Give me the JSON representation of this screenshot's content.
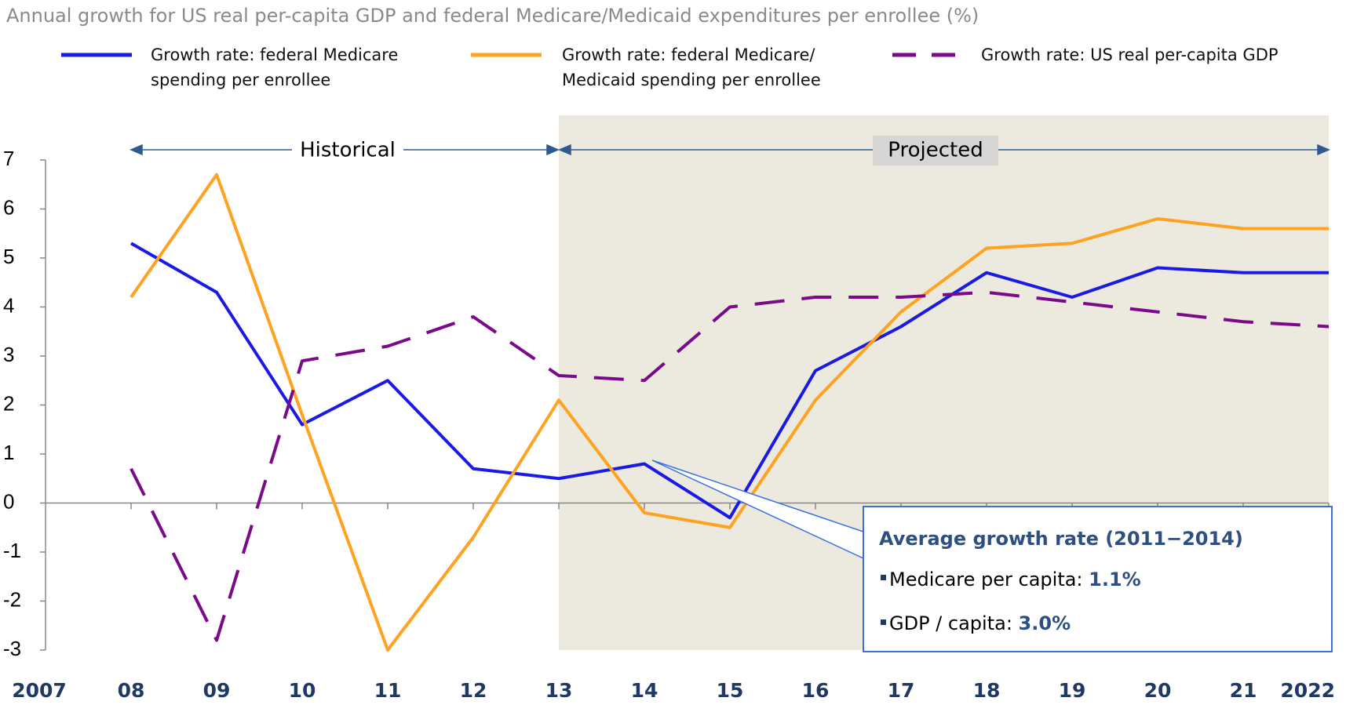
{
  "chart_data": {
    "type": "line",
    "title": "Annual growth for US real per-capita GDP and federal Medicare/Medicaid expenditures per enrollee (%)",
    "categories": [
      "2007",
      "08",
      "09",
      "10",
      "11",
      "12",
      "13",
      "14",
      "15",
      "16",
      "17",
      "18",
      "19",
      "20",
      "21",
      "2022"
    ],
    "series": [
      {
        "name": "Growth rate: federal Medicare spending per enrollee",
        "color": "#1a1ae6",
        "dashed": false,
        "values": [
          null,
          5.3,
          4.3,
          1.6,
          2.5,
          0.7,
          0.5,
          0.8,
          -0.3,
          2.7,
          3.6,
          4.7,
          4.2,
          4.8,
          4.7,
          4.7
        ]
      },
      {
        "name": "Growth rate: federal Medicare/ Medicaid spending per enrollee",
        "color": "#ffa21f",
        "dashed": false,
        "values": [
          null,
          4.2,
          6.7,
          1.8,
          -3.0,
          -0.7,
          2.1,
          -0.2,
          -0.5,
          2.1,
          3.9,
          5.2,
          5.3,
          5.8,
          5.6,
          5.6
        ]
      },
      {
        "name": "Growth rate: US real per-capita GDP",
        "color": "#7a0a8a",
        "dashed": true,
        "values": [
          null,
          0.7,
          -2.8,
          2.9,
          3.2,
          3.8,
          2.6,
          2.5,
          4.0,
          4.2,
          4.2,
          4.3,
          4.1,
          3.9,
          3.7,
          3.6
        ]
      }
    ],
    "ylim": [
      -3,
      7
    ],
    "yticks": [
      -3,
      -2,
      -1,
      0,
      1,
      2,
      3,
      4,
      5,
      6,
      7
    ],
    "annotations": {
      "historical": "Historical",
      "projected": "Projected",
      "box_title": "Average growth rate (2011−2014)",
      "items": [
        {
          "label": "Medicare per capita:",
          "value": "1.1%"
        },
        {
          "label": "GDP / capita:",
          "value": "3.0%"
        }
      ]
    }
  }
}
